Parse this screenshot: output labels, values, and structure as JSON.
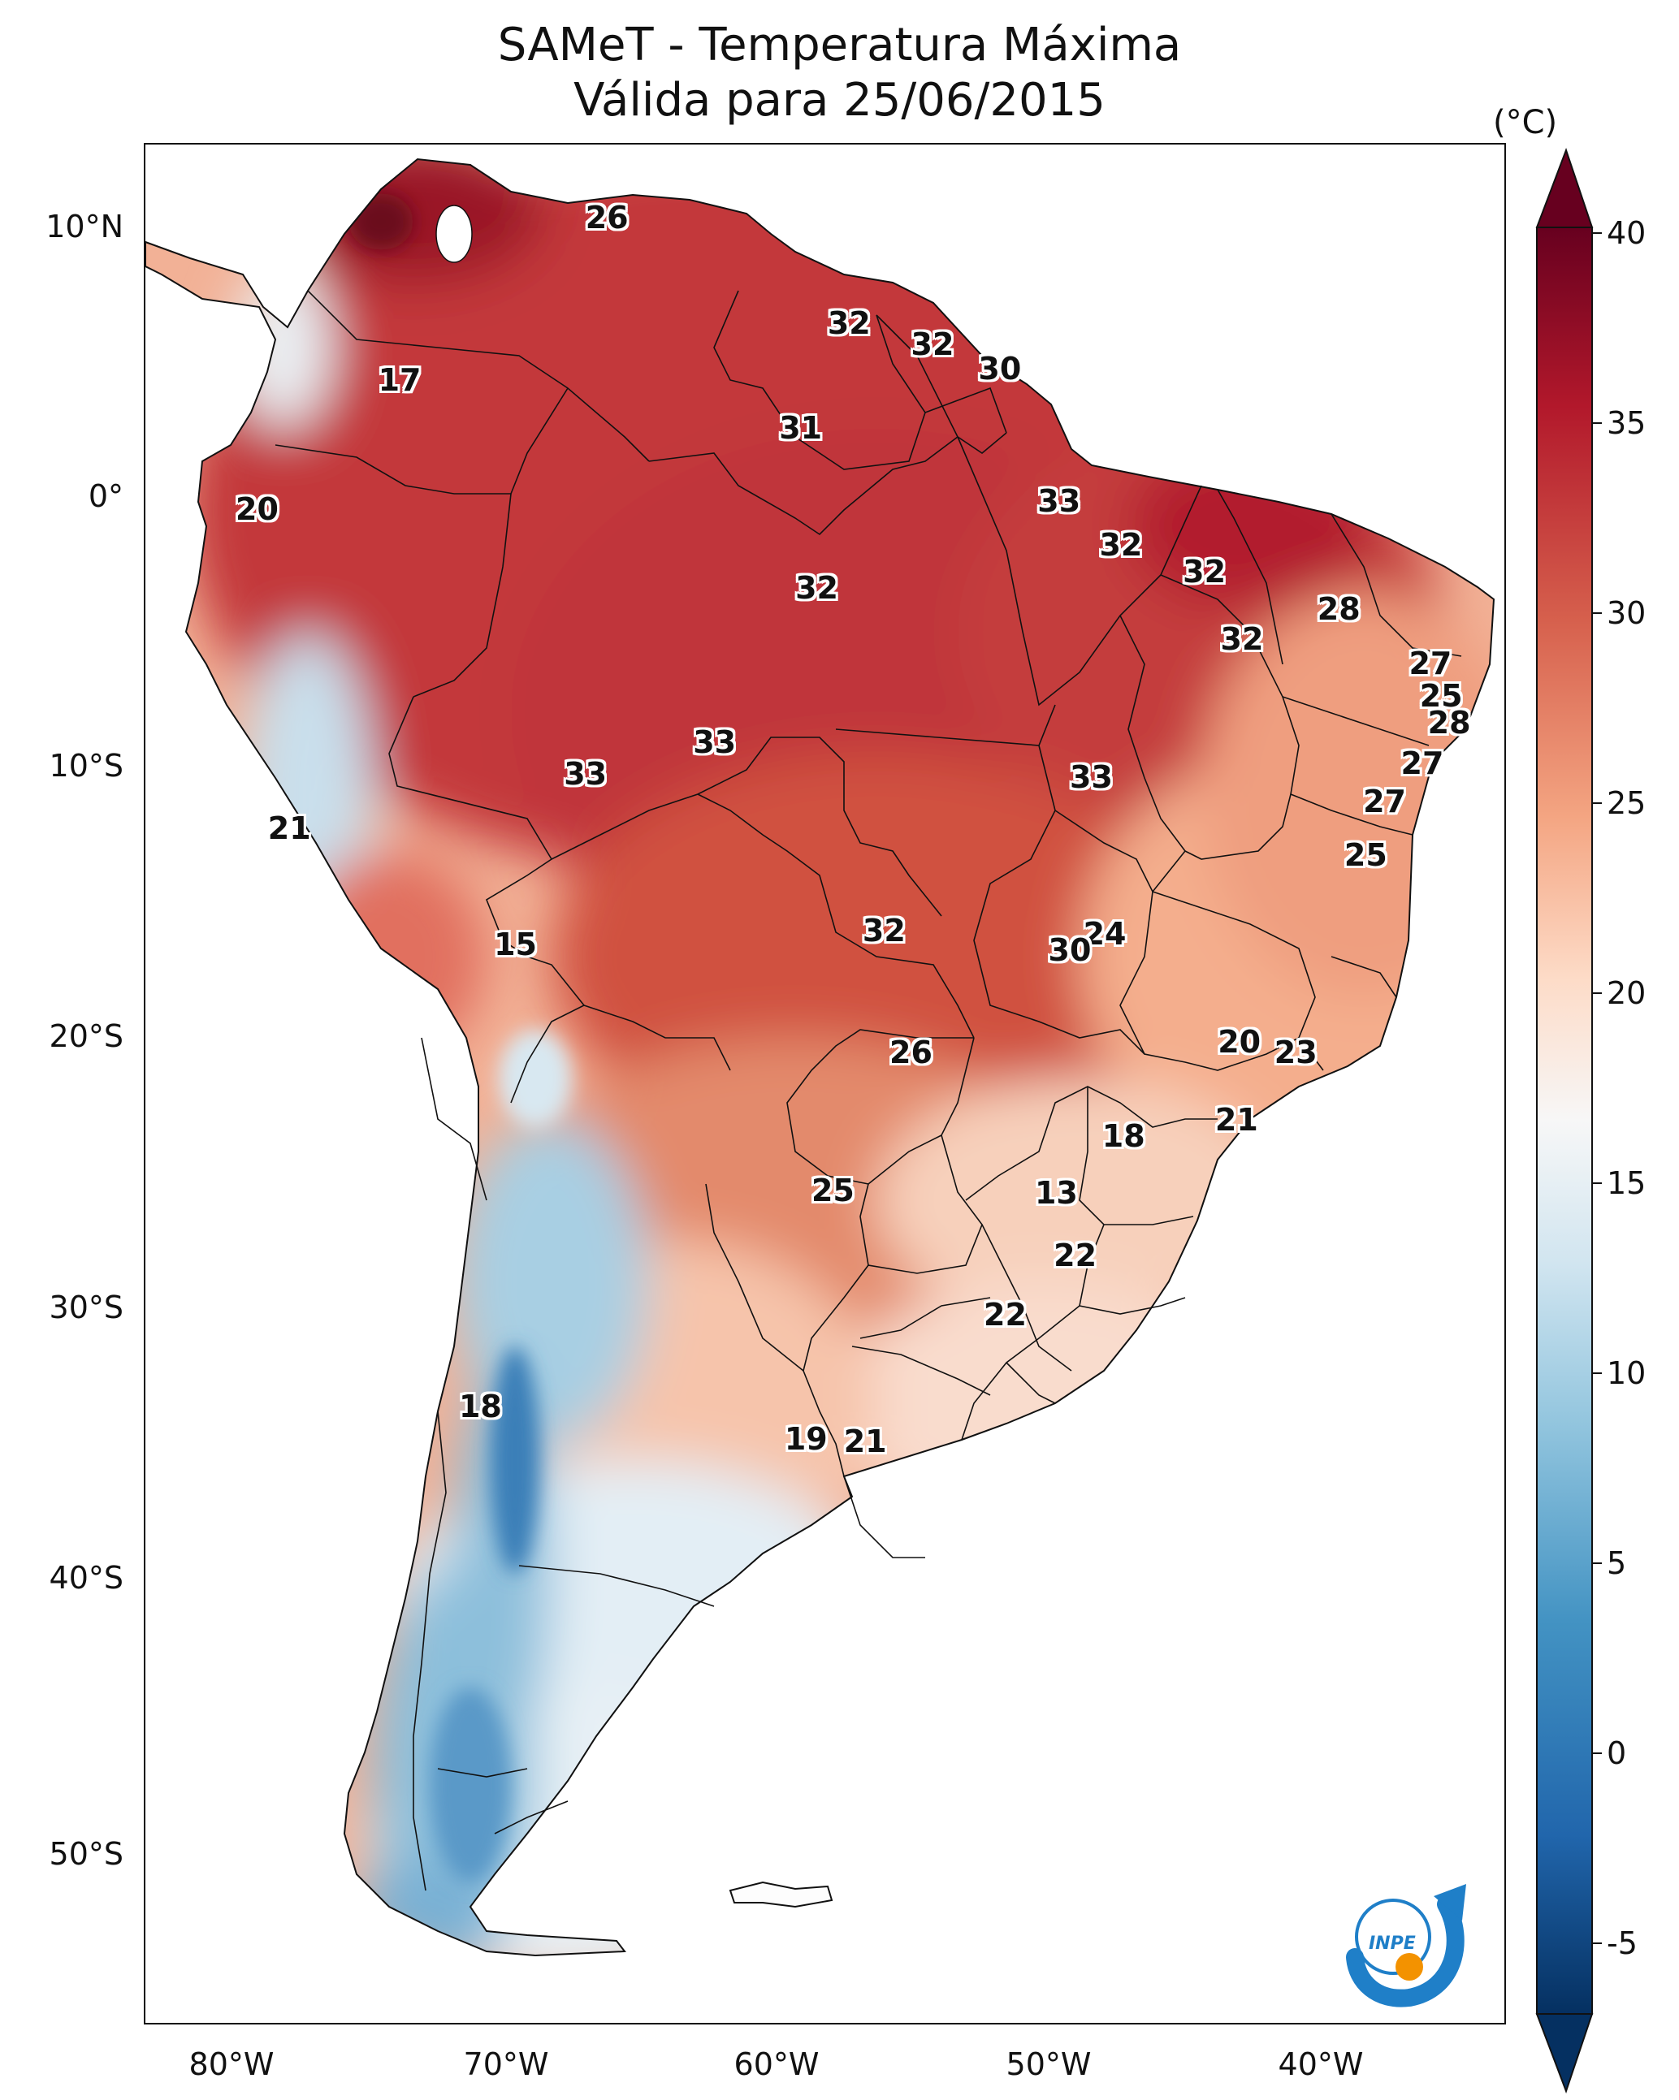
{
  "title": {
    "line1": "SAMeT - Temperatura Máxima",
    "line2": "Válida para 25/06/2015"
  },
  "colorbar": {
    "unit": "(°C)",
    "range": [
      -5,
      40
    ],
    "extend": "both",
    "ticks": [
      "40",
      "35",
      "30",
      "25",
      "20",
      "15",
      "10",
      "5",
      "0",
      "-5"
    ],
    "colormap": "RdBu_r",
    "colors": [
      "#053061",
      "#2166ac",
      "#4393c3",
      "#92c5de",
      "#d1e5f0",
      "#f7f7f7",
      "#fddbc7",
      "#f4a582",
      "#d6604d",
      "#b2182b",
      "#67001f"
    ]
  },
  "axes": {
    "lat_labels": [
      "10°N",
      "0°",
      "10°S",
      "20°S",
      "30°S",
      "40°S",
      "50°S"
    ],
    "lon_labels": [
      "80°W",
      "70°W",
      "60°W",
      "50°W",
      "40°W"
    ]
  },
  "contour_labels": [
    {
      "text": "26",
      "lon": -66.1,
      "lat": 10.6
    },
    {
      "text": "17",
      "lon": -73.8,
      "lat": 4.6
    },
    {
      "text": "32",
      "lon": -57.1,
      "lat": 6.7
    },
    {
      "text": "32",
      "lon": -54.0,
      "lat": 5.9
    },
    {
      "text": "30",
      "lon": -51.5,
      "lat": 5.0
    },
    {
      "text": "31",
      "lon": -58.9,
      "lat": 2.8
    },
    {
      "text": "33",
      "lon": -49.3,
      "lat": 0.1
    },
    {
      "text": "20",
      "lon": -79.1,
      "lat": -0.2
    },
    {
      "text": "32",
      "lon": -47.0,
      "lat": -1.5
    },
    {
      "text": "32",
      "lon": -43.9,
      "lat": -2.5
    },
    {
      "text": "32",
      "lon": -58.3,
      "lat": -3.1
    },
    {
      "text": "28",
      "lon": -38.9,
      "lat": -3.9
    },
    {
      "text": "32",
      "lon": -42.5,
      "lat": -5.0
    },
    {
      "text": "27",
      "lon": -35.5,
      "lat": -5.9
    },
    {
      "text": "25",
      "lon": -35.1,
      "lat": -7.1
    },
    {
      "text": "28",
      "lon": -34.8,
      "lat": -8.1
    },
    {
      "text": "33",
      "lon": -62.1,
      "lat": -8.8
    },
    {
      "text": "27",
      "lon": -35.8,
      "lat": -9.6
    },
    {
      "text": "33",
      "lon": -66.9,
      "lat": -10.0
    },
    {
      "text": "33",
      "lon": -48.1,
      "lat": -10.1
    },
    {
      "text": "27",
      "lon": -37.2,
      "lat": -11.0
    },
    {
      "text": "21",
      "lon": -77.9,
      "lat": -12.0
    },
    {
      "text": "25",
      "lon": -37.9,
      "lat": -13.0
    },
    {
      "text": "24",
      "lon": -47.6,
      "lat": -15.9
    },
    {
      "text": "32",
      "lon": -55.8,
      "lat": -15.8
    },
    {
      "text": "30",
      "lon": -48.9,
      "lat": -16.5
    },
    {
      "text": "15",
      "lon": -69.5,
      "lat": -16.3
    },
    {
      "text": "20",
      "lon": -42.6,
      "lat": -19.9
    },
    {
      "text": "26",
      "lon": -54.8,
      "lat": -20.3
    },
    {
      "text": "23",
      "lon": -40.5,
      "lat": -20.3
    },
    {
      "text": "21",
      "lon": -42.7,
      "lat": -22.8
    },
    {
      "text": "18",
      "lon": -46.9,
      "lat": -23.4
    },
    {
      "text": "13",
      "lon": -49.4,
      "lat": -25.5
    },
    {
      "text": "25",
      "lon": -57.7,
      "lat": -25.4
    },
    {
      "text": "22",
      "lon": -48.7,
      "lat": -27.8
    },
    {
      "text": "22",
      "lon": -51.3,
      "lat": -30.0
    },
    {
      "text": "18",
      "lon": -70.8,
      "lat": -33.4
    },
    {
      "text": "19",
      "lon": -58.7,
      "lat": -34.6
    },
    {
      "text": "21",
      "lon": -56.5,
      "lat": -34.7
    }
  ],
  "logo": {
    "text": "INPE",
    "colors": {
      "blue": "#1f7fc8",
      "orange": "#f39200"
    }
  }
}
